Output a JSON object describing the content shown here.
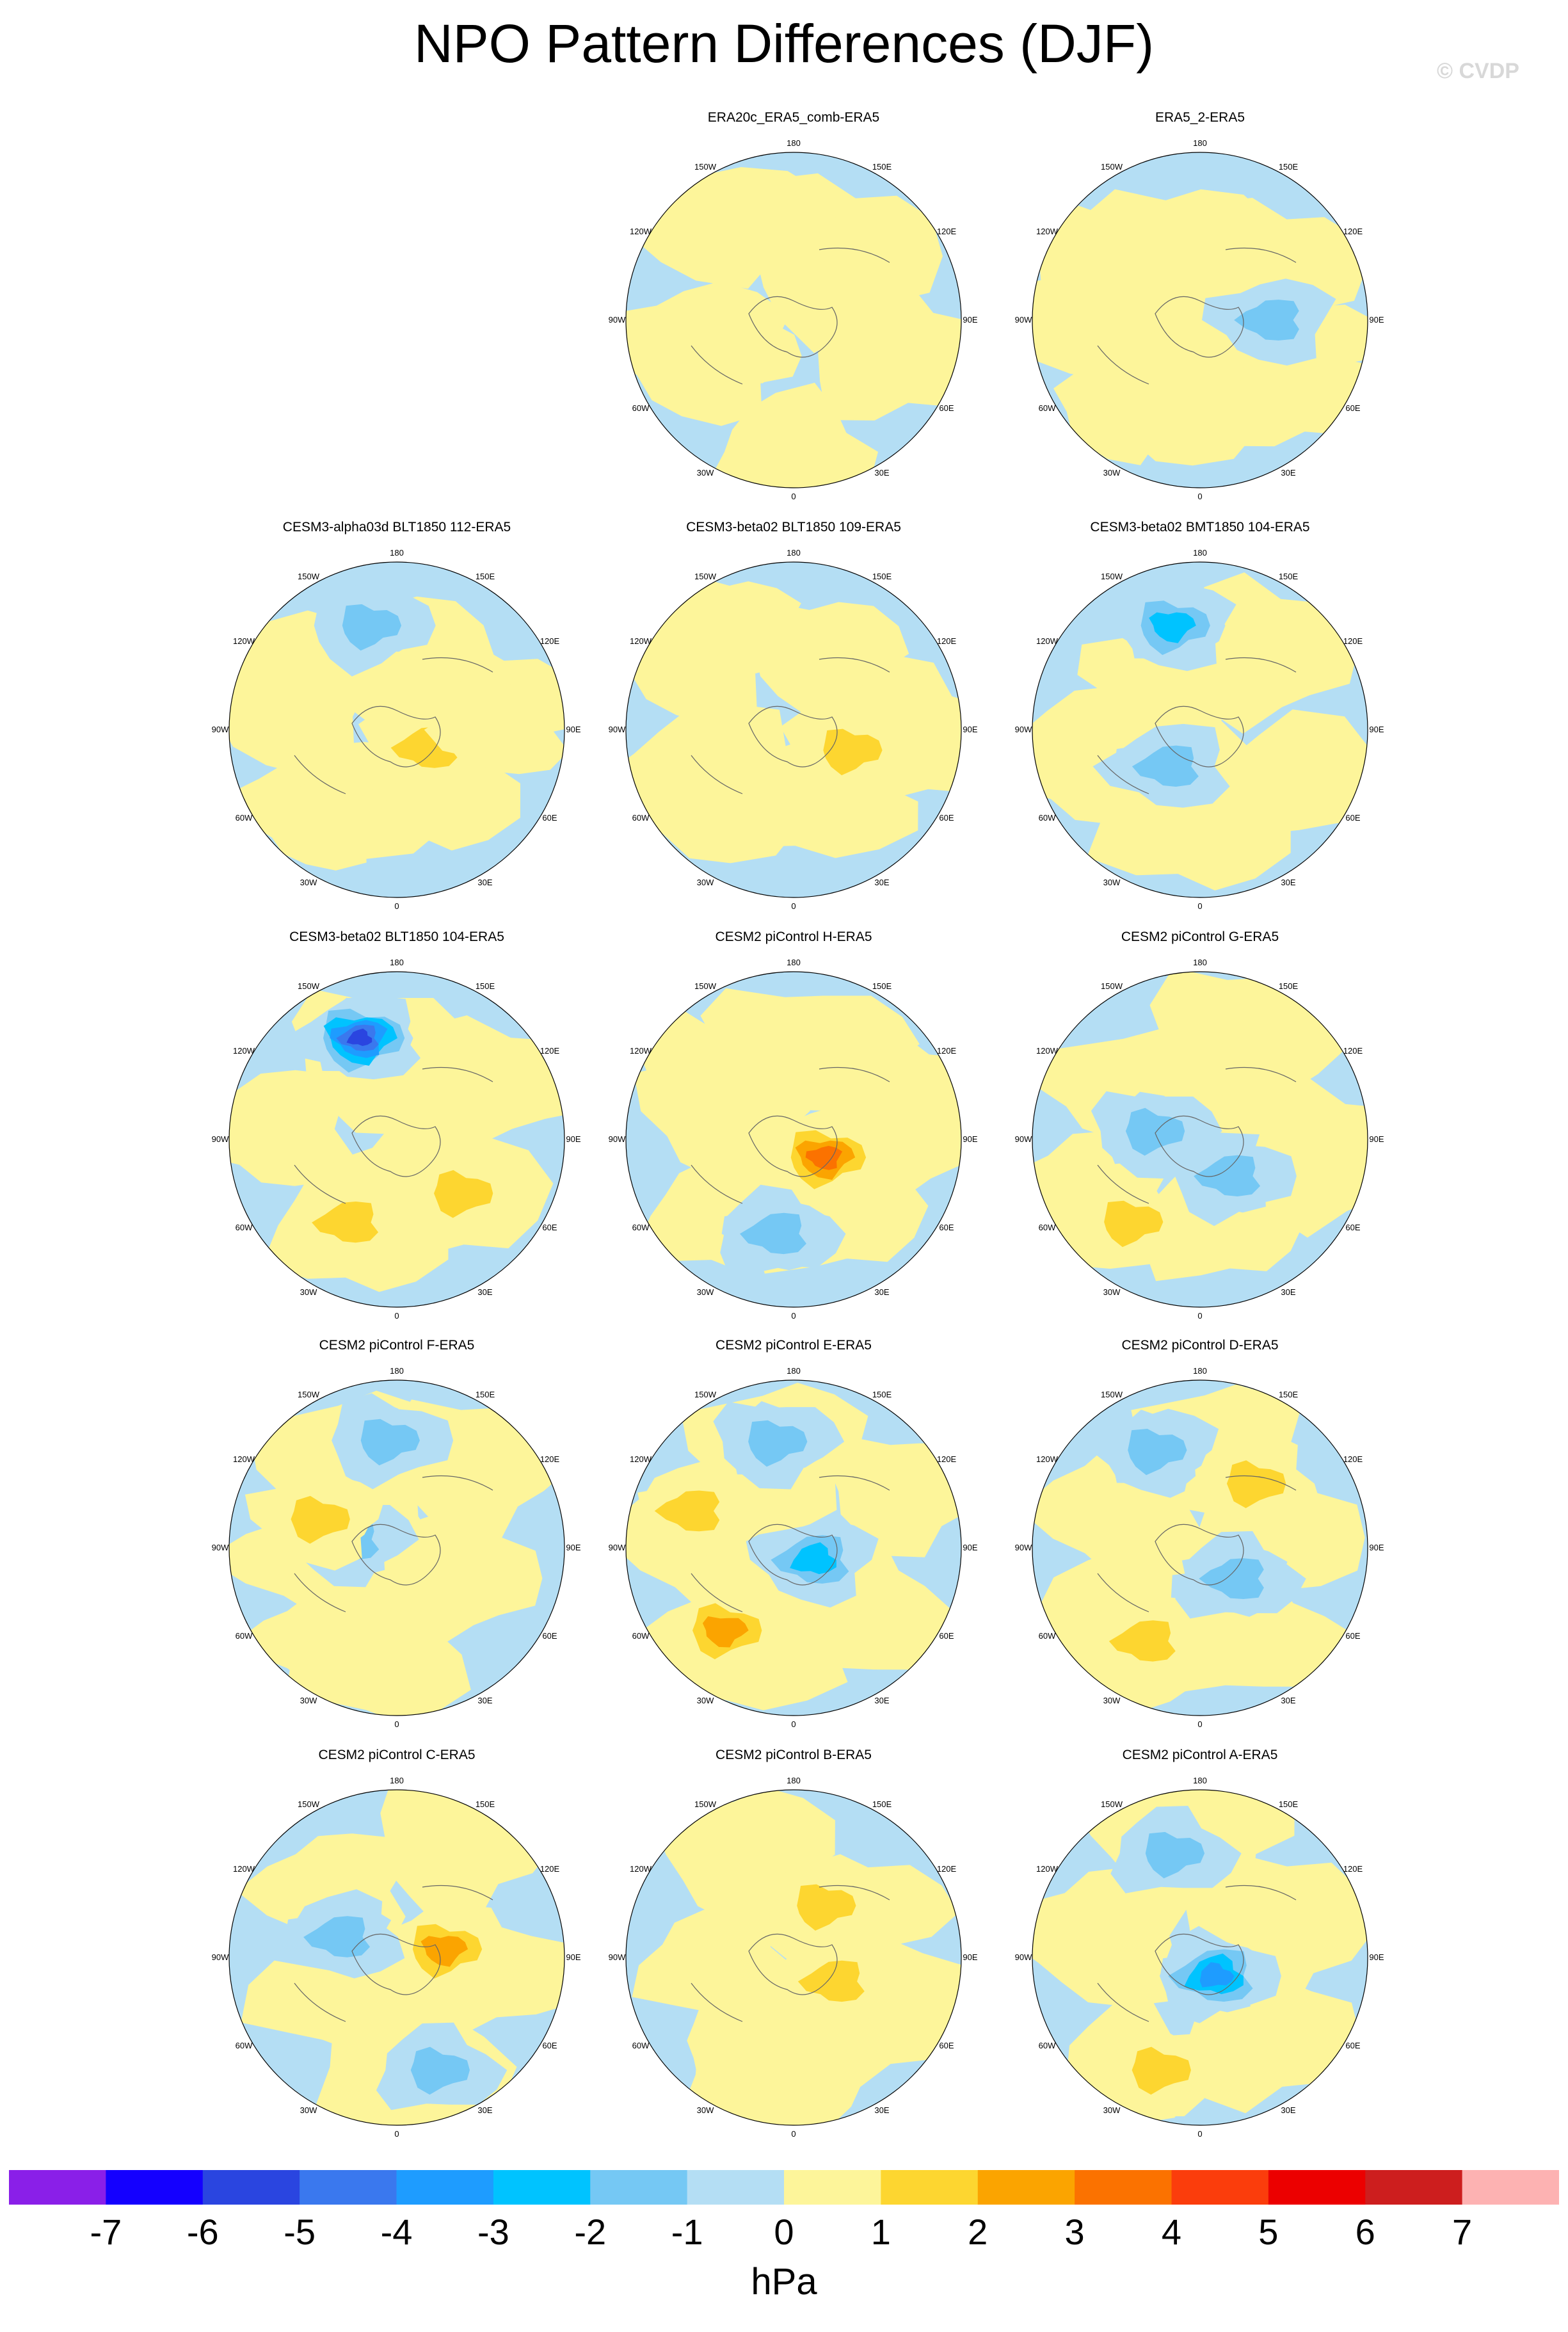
{
  "title": "NPO Pattern Differences (DJF)",
  "watermark": "© CVDP",
  "longitude_labels": [
    "180",
    "150E",
    "120E",
    "90E",
    "60E",
    "30E",
    "0",
    "30W",
    "60W",
    "90W",
    "120W",
    "150W"
  ],
  "panels": [
    {
      "title": "ERA20c_ERA5_comb-ERA5",
      "row": 0,
      "col": 1,
      "features": [
        {
          "type": "pos",
          "lat": 55,
          "lon": 180,
          "level": 1
        },
        {
          "type": "pos",
          "lat": 50,
          "lon": 60,
          "level": 1
        },
        {
          "type": "pos",
          "lat": 60,
          "lon": -60,
          "level": 1
        }
      ]
    },
    {
      "title": "ERA5_2-ERA5",
      "row": 0,
      "col": 2,
      "features": [
        {
          "type": "pos",
          "lat": 40,
          "lon": -120,
          "level": 1
        },
        {
          "type": "pos",
          "lat": 45,
          "lon": 80,
          "level": 1
        },
        {
          "type": "pos",
          "lat": 40,
          "lon": -40,
          "level": 1
        },
        {
          "type": "neg",
          "lat": 60,
          "lon": 90,
          "level": 2
        }
      ]
    },
    {
      "title": "CESM3-alpha03d BLT1850 112-ERA5",
      "row": 1,
      "col": 0,
      "features": [
        {
          "type": "neg",
          "lat": 45,
          "lon": -165,
          "level": 2
        },
        {
          "type": "pos",
          "lat": 75,
          "lon": 60,
          "level": 2
        },
        {
          "type": "pos",
          "lat": 40,
          "lon": -40,
          "level": 1
        },
        {
          "type": "pos",
          "lat": 45,
          "lon": 90,
          "level": 1
        }
      ]
    },
    {
      "title": "CESM3-beta02 BLT1850 109-ERA5",
      "row": 1,
      "col": 1,
      "features": [
        {
          "type": "pos",
          "lat": 65,
          "lon": 70,
          "level": 2
        },
        {
          "type": "pos",
          "lat": 40,
          "lon": -150,
          "level": 1
        },
        {
          "type": "pos",
          "lat": 45,
          "lon": -60,
          "level": 1
        }
      ]
    },
    {
      "title": "CESM3-beta02 BMT1850 104-ERA5",
      "row": 1,
      "col": 2,
      "features": [
        {
          "type": "neg",
          "lat": 45,
          "lon": -165,
          "level": 3
        },
        {
          "type": "neg",
          "lat": 70,
          "lon": -40,
          "level": 2
        },
        {
          "type": "pos",
          "lat": 40,
          "lon": 70,
          "level": 1
        }
      ]
    },
    {
      "title": "CESM3-beta02 BLT1850 104-ERA5",
      "row": 2,
      "col": 0,
      "features": [
        {
          "type": "neg",
          "lat": 45,
          "lon": -160,
          "level": 6
        },
        {
          "type": "pos",
          "lat": 50,
          "lon": -30,
          "level": 2
        },
        {
          "type": "pos",
          "lat": 55,
          "lon": 50,
          "level": 2
        }
      ]
    },
    {
      "title": "CESM2 piControl H-ERA5",
      "row": 2,
      "col": 1,
      "features": [
        {
          "type": "pos",
          "lat": 75,
          "lon": 60,
          "level": 4
        },
        {
          "type": "neg",
          "lat": 50,
          "lon": -10,
          "level": 2
        },
        {
          "type": "pos",
          "lat": 40,
          "lon": -130,
          "level": 1
        }
      ]
    },
    {
      "title": "CESM2 piControl G-ERA5",
      "row": 2,
      "col": 2,
      "features": [
        {
          "type": "pos",
          "lat": 45,
          "lon": -40,
          "level": 2
        },
        {
          "type": "neg",
          "lat": 70,
          "lon": 40,
          "level": 2
        },
        {
          "type": "neg",
          "lat": 70,
          "lon": -100,
          "level": 2
        }
      ]
    },
    {
      "title": "CESM2 piControl F-ERA5",
      "row": 3,
      "col": 0,
      "features": [
        {
          "type": "neg",
          "lat": 45,
          "lon": -175,
          "level": 2
        },
        {
          "type": "neg",
          "lat": 70,
          "lon": -100,
          "level": 2
        },
        {
          "type": "pos",
          "lat": 55,
          "lon": -110,
          "level": 2
        },
        {
          "type": "pos",
          "lat": 40,
          "lon": -40,
          "level": 1
        }
      ]
    },
    {
      "title": "CESM2 piControl E-ERA5",
      "row": 3,
      "col": 1,
      "features": [
        {
          "type": "neg",
          "lat": 45,
          "lon": -170,
          "level": 2
        },
        {
          "type": "neg",
          "lat": 80,
          "lon": 60,
          "level": 3
        },
        {
          "type": "pos",
          "lat": 45,
          "lon": -40,
          "level": 3
        },
        {
          "type": "pos",
          "lat": 45,
          "lon": -110,
          "level": 2
        }
      ]
    },
    {
      "title": "CESM2 piControl D-ERA5",
      "row": 3,
      "col": 2,
      "features": [
        {
          "type": "neg",
          "lat": 45,
          "lon": -155,
          "level": 2
        },
        {
          "type": "pos",
          "lat": 45,
          "lon": -30,
          "level": 2
        },
        {
          "type": "pos",
          "lat": 55,
          "lon": 140,
          "level": 2
        },
        {
          "type": "neg",
          "lat": 70,
          "lon": 50,
          "level": 2
        }
      ]
    },
    {
      "title": "CESM2 piControl C-ERA5",
      "row": 4,
      "col": 0,
      "features": [
        {
          "type": "pos",
          "lat": 70,
          "lon": 100,
          "level": 3
        },
        {
          "type": "neg",
          "lat": 65,
          "lon": -110,
          "level": 2
        },
        {
          "type": "neg",
          "lat": 40,
          "lon": 20,
          "level": 2
        }
      ]
    },
    {
      "title": "CESM2 piControl B-ERA5",
      "row": 4,
      "col": 1,
      "features": [
        {
          "type": "pos",
          "lat": 65,
          "lon": 150,
          "level": 2
        },
        {
          "type": "pos",
          "lat": 70,
          "lon": 60,
          "level": 2
        },
        {
          "type": "pos",
          "lat": 50,
          "lon": -30,
          "level": 1
        }
      ]
    },
    {
      "title": "CESM2 piControl A-ERA5",
      "row": 4,
      "col": 2,
      "features": [
        {
          "type": "neg",
          "lat": 45,
          "lon": -165,
          "level": 2
        },
        {
          "type": "neg",
          "lat": 80,
          "lon": 40,
          "level": 4
        },
        {
          "type": "pos",
          "lat": 40,
          "lon": -20,
          "level": 2
        }
      ]
    }
  ],
  "colorbar": {
    "units": "hPa",
    "ticks": [
      "-7",
      "-6",
      "-5",
      "-4",
      "-3",
      "-2",
      "-1",
      "0",
      "1",
      "2",
      "3",
      "4",
      "5",
      "6",
      "7"
    ],
    "colors": [
      "#8a1fe8",
      "#1400ff",
      "#2a45e0",
      "#3a78ee",
      "#1e9cff",
      "#00c3ff",
      "#75c8f4",
      "#b4def4",
      "#fdf59a",
      "#fdd630",
      "#fba400",
      "#fb7200",
      "#fb3d0c",
      "#ec0000",
      "#cd1e1e",
      "#fdb2b2"
    ]
  }
}
